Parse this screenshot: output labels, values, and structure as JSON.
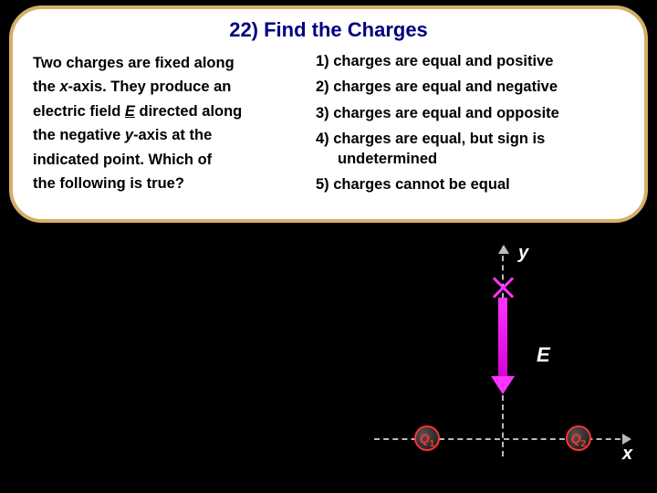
{
  "title": "22) Find the Charges",
  "question": {
    "p1a": "Two charges are fixed along",
    "p2a": "the ",
    "p2b": "x",
    "p2c": "-axis.  They produce an",
    "p3a": "electric field ",
    "p3b": "E",
    "p3c": " directed along",
    "p4a": "the negative ",
    "p4b": "y",
    "p4c": "-axis at the",
    "p5": "indicated point.  Which of",
    "p6": "the following is true?"
  },
  "answers": {
    "a1": "1)  charges are equal and positive",
    "a2": "2)  charges are equal and negative",
    "a3": "3)  charges are equal and opposite",
    "a4a": "4)  charges are equal, but sign is",
    "a4b": "undetermined",
    "a5": "5)  charges cannot be equal"
  },
  "diagram": {
    "y": "y",
    "x": "x",
    "E": "E",
    "q1": "Q",
    "q1sub": "1",
    "q2": "Q",
    "q2sub": "2"
  }
}
